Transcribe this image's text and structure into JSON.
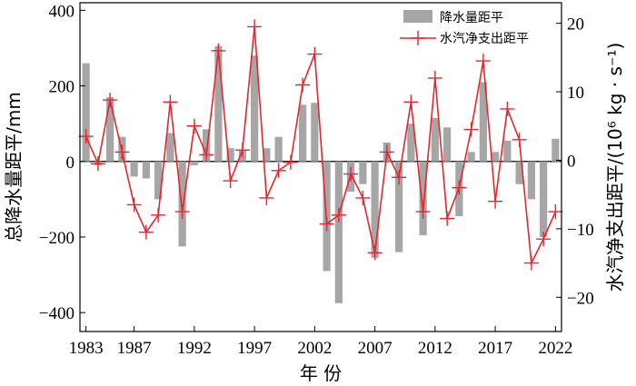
{
  "chart_data": {
    "type": "bar+line",
    "xlabel": "年 份",
    "ylabel_left": "总降水量距平/mm",
    "ylabel_right": "水汽净支出距平/(10⁶ kg · s⁻¹)",
    "x_ticks": [
      "1983",
      "1987",
      "1992",
      "1997",
      "2002",
      "2007",
      "2012",
      "2017",
      "2022"
    ],
    "y_left_ticks": [
      "400",
      "200",
      "0",
      "−200",
      "−400"
    ],
    "y_right_ticks": [
      "20",
      "10",
      "0",
      "−10",
      "−20"
    ],
    "ylim_left": [
      -450,
      420
    ],
    "ylim_right": [
      -25,
      23
    ],
    "years": [
      1983,
      1984,
      1985,
      1986,
      1987,
      1988,
      1989,
      1990,
      1991,
      1992,
      1993,
      1994,
      1995,
      1996,
      1997,
      1998,
      1999,
      2000,
      2001,
      2002,
      2003,
      2004,
      2005,
      2006,
      2007,
      2008,
      2009,
      2010,
      2011,
      2012,
      2013,
      2014,
      2015,
      2016,
      2017,
      2018,
      2019,
      2020,
      2021,
      2022
    ],
    "series": [
      {
        "name": "降水量距平",
        "kind": "bar",
        "color": "#a6a6a6",
        "values": [
          260,
          -10,
          170,
          65,
          -40,
          -45,
          -100,
          75,
          -225,
          -10,
          85,
          305,
          35,
          30,
          280,
          35,
          65,
          0,
          150,
          155,
          -290,
          -375,
          -80,
          -60,
          -255,
          50,
          -240,
          100,
          -195,
          115,
          90,
          -145,
          25,
          210,
          25,
          55,
          -60,
          -100,
          -200,
          60
        ]
      },
      {
        "name": "水汽净支出距平",
        "kind": "line",
        "color": "#e6262e",
        "values": [
          3.5,
          -0.5,
          8.8,
          1.2,
          -6.5,
          -10.5,
          -8,
          8.5,
          -7.5,
          5,
          0.8,
          16,
          -3,
          1.5,
          19.5,
          -5.5,
          -1.5,
          -0.3,
          11,
          15.5,
          -9.3,
          -8,
          -2,
          -5.5,
          -13.5,
          1.2,
          -2.5,
          8.5,
          -7.5,
          12,
          -8.5,
          -4,
          4.5,
          14.5,
          -6,
          7.5,
          3,
          -15,
          -11.5,
          -7.5
        ]
      }
    ],
    "legend": {
      "position": "top-right"
    }
  }
}
